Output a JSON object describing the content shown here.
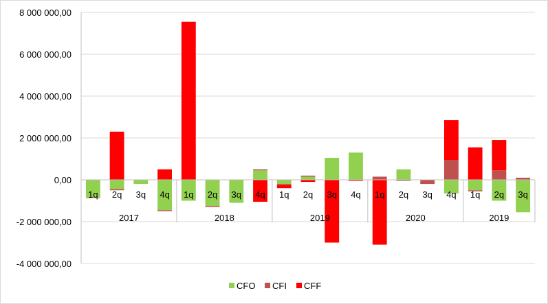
{
  "chart_data": {
    "type": "bar",
    "stacked": true,
    "title": "",
    "xlabel": "",
    "ylabel": "",
    "ylim": [
      -4000000,
      8000000
    ],
    "yticks": [
      8000000,
      6000000,
      4000000,
      2000000,
      0,
      -2000000,
      -4000000
    ],
    "ytick_labels": [
      "8 000 000,00",
      "6 000 000,00",
      "4 000 000,00",
      "2 000 000,00",
      "0,00",
      "-2 000 000,00",
      "-4 000 000,00"
    ],
    "grid": true,
    "legend_position": "bottom",
    "groups": [
      {
        "label": "2017",
        "quarters": [
          "1q",
          "2q",
          "3q",
          "4q"
        ]
      },
      {
        "label": "2018",
        "quarters": [
          "1q",
          "2q",
          "3q",
          "4q"
        ]
      },
      {
        "label": "2019",
        "quarters": [
          "1q",
          "2q",
          "3q",
          "4q"
        ]
      },
      {
        "label": "2020",
        "quarters": [
          "1q",
          "2q",
          "3q",
          "4q"
        ]
      },
      {
        "label": "2019",
        "quarters": [
          "1q",
          "2q",
          "3q"
        ]
      }
    ],
    "series": [
      {
        "name": "CFO",
        "color": "#92D050",
        "values": [
          -850000,
          -450000,
          -200000,
          -1450000,
          -1000000,
          -1250000,
          -1100000,
          450000,
          -200000,
          150000,
          1050000,
          1300000,
          0,
          500000,
          0,
          -650000,
          -500000,
          -1000000,
          -1550000
        ]
      },
      {
        "name": "CFI",
        "color": "#C0504D",
        "values": [
          -20000,
          -50000,
          0,
          -50000,
          0,
          -50000,
          0,
          50000,
          -50000,
          50000,
          0,
          0,
          150000,
          -50000,
          -200000,
          950000,
          -50000,
          450000,
          100000
        ]
      },
      {
        "name": "CFF",
        "color": "#FF0000",
        "values": [
          0,
          2300000,
          0,
          500000,
          7550000,
          0,
          0,
          -1050000,
          -150000,
          -100000,
          -3000000,
          -50000,
          -3100000,
          0,
          0,
          1900000,
          1550000,
          1450000,
          0
        ]
      }
    ]
  }
}
